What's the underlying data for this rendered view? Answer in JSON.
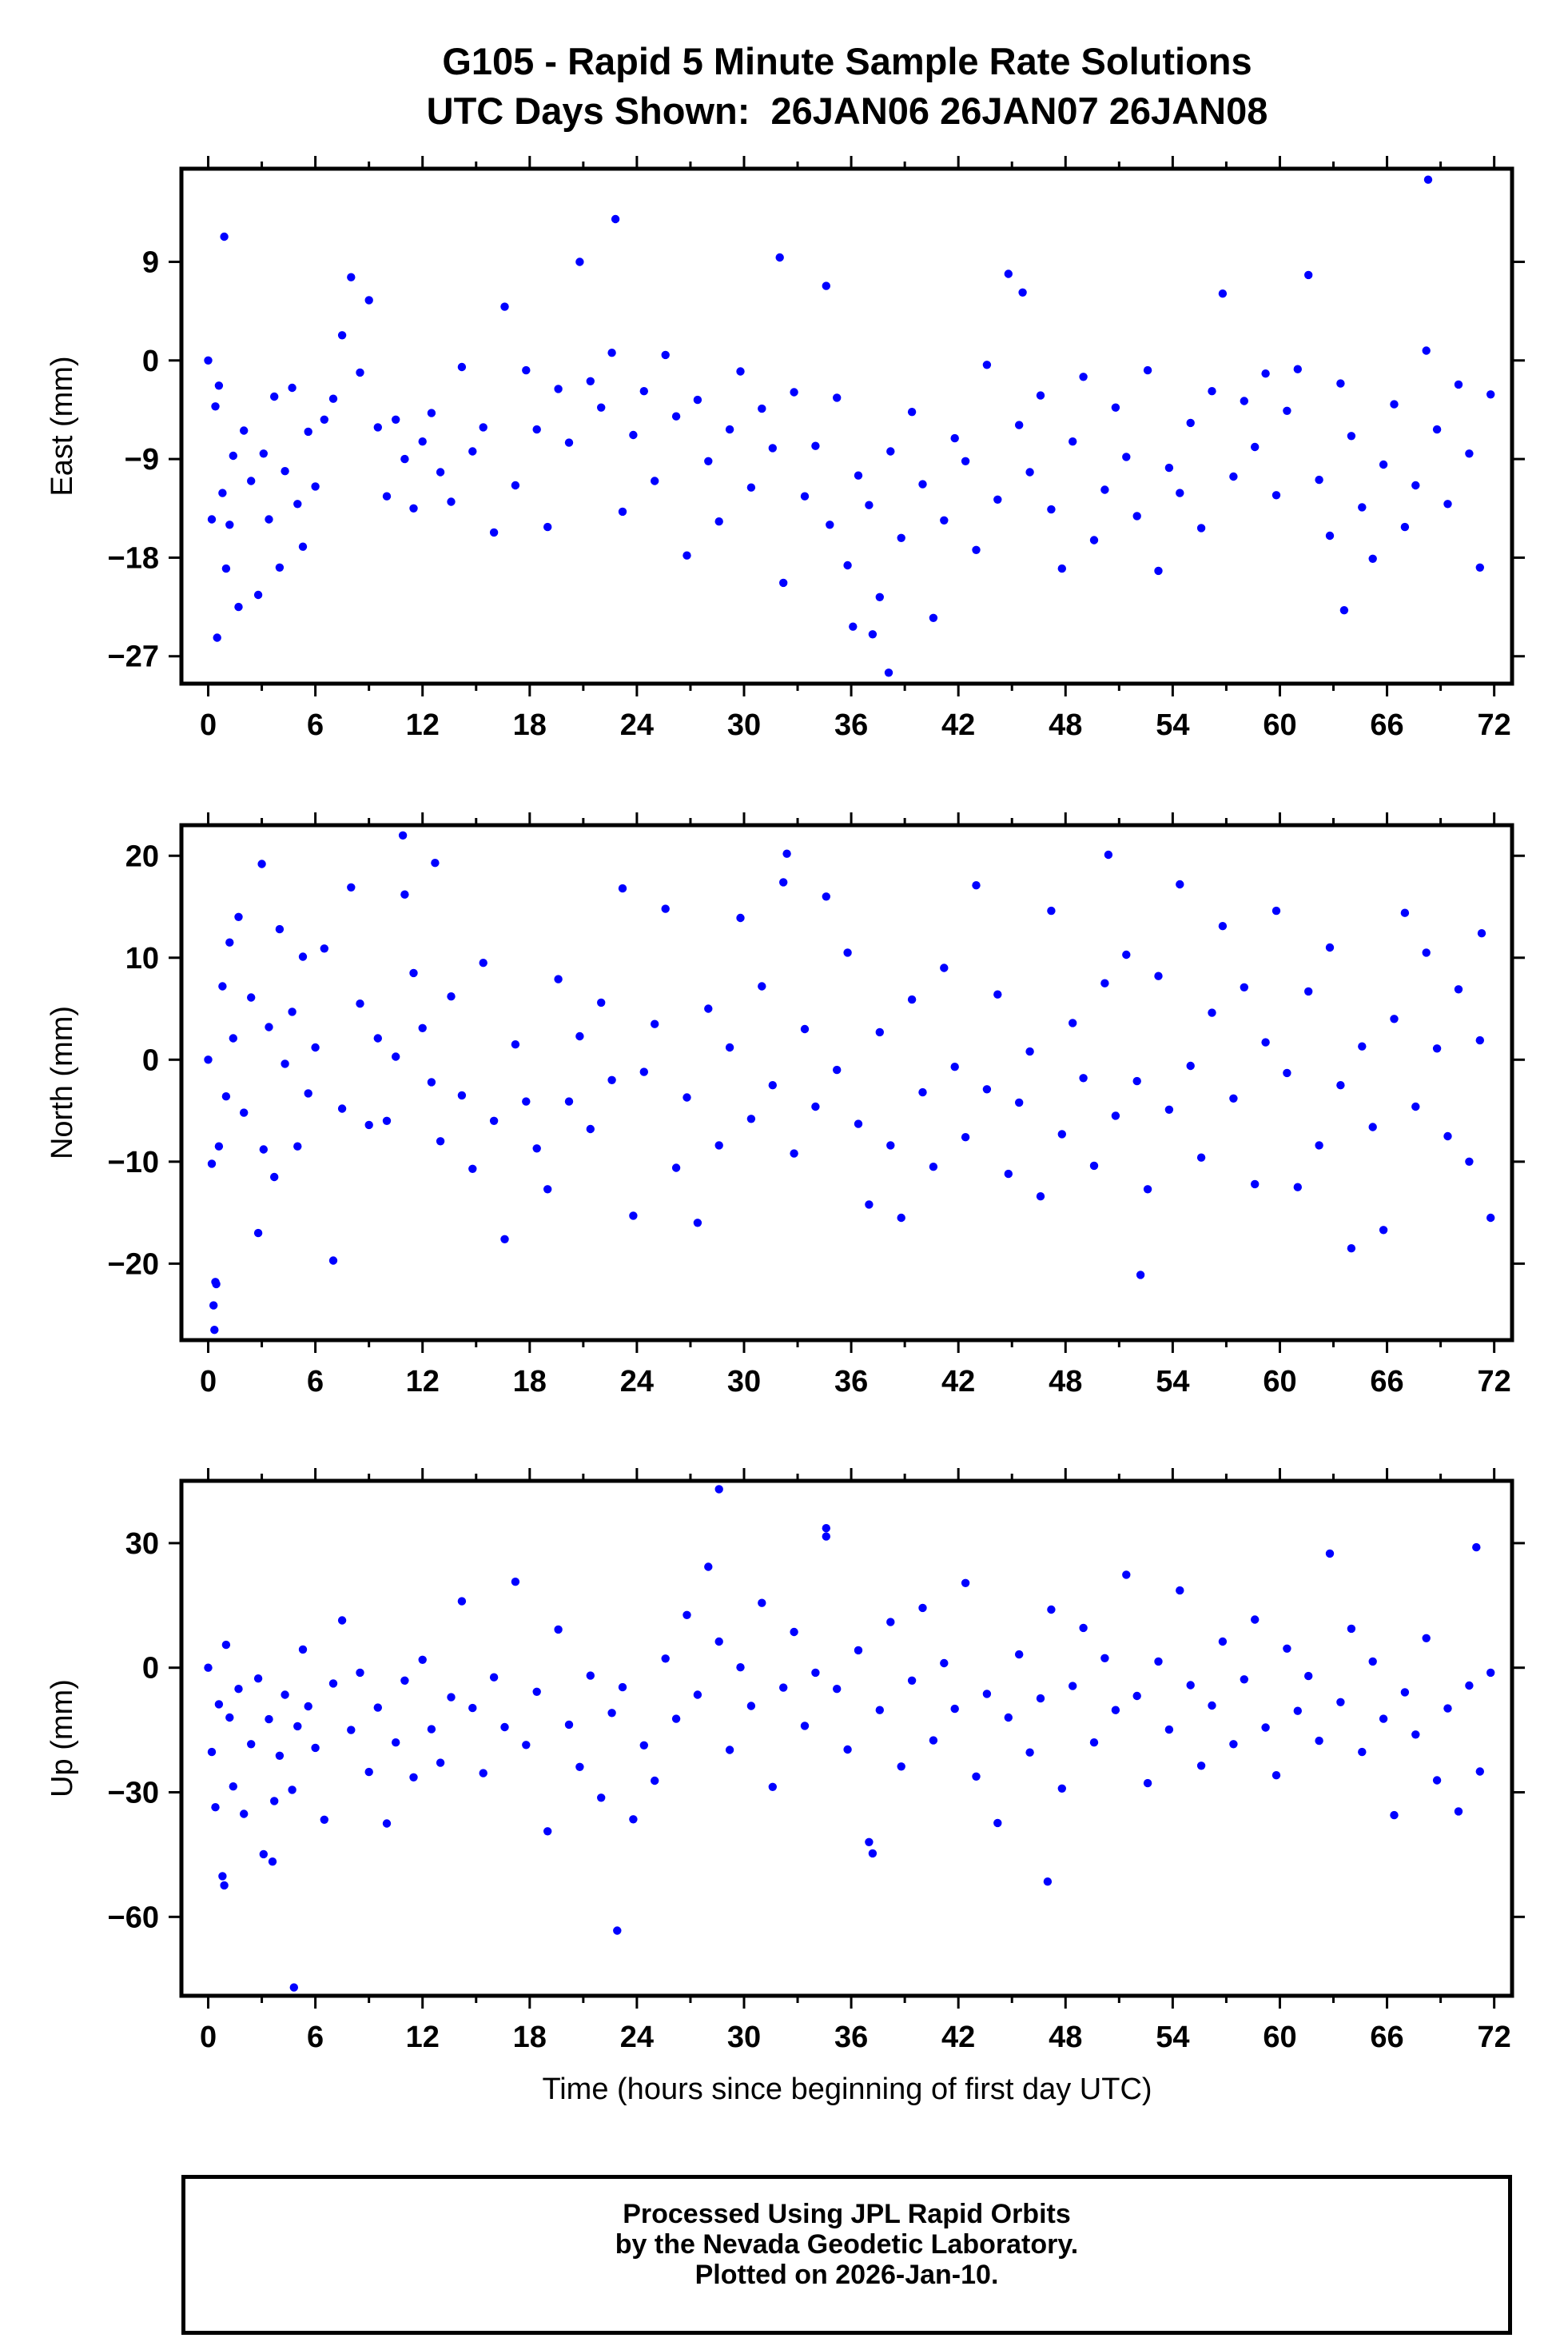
{
  "title_line1": "G105 - Rapid 5 Minute Sample Rate Solutions",
  "title_line2": "UTC Days Shown:  26JAN06 26JAN07 26JAN08",
  "marker_color": "#0000ff",
  "footer": {
    "line1": "Processed Using JPL Rapid Orbits",
    "line2": "by the Nevada Geodetic Laboratory.",
    "line3": "Plotted on 2026-Jan-10."
  },
  "chart_data": [
    {
      "type": "scatter",
      "ylabel": "East (mm)",
      "xlim": [
        -1.5,
        73
      ],
      "ylim": [
        -29.5,
        17.5
      ],
      "xticks": [
        0,
        6,
        12,
        18,
        24,
        30,
        36,
        42,
        48,
        54,
        60,
        66,
        72
      ],
      "xtick_labels": [
        "0",
        "6",
        "12",
        "18",
        "24",
        "30",
        "36",
        "42",
        "48",
        "54",
        "60",
        "66",
        "72"
      ],
      "yticks": [
        9,
        0,
        -9,
        -18,
        -27
      ],
      "ytick_labels": [
        "9",
        "0",
        "−9",
        "−18",
        "−27"
      ],
      "series": [
        {
          "x": [
            0.0,
            0.2,
            0.4,
            0.6,
            0.8,
            1.0,
            1.2,
            1.4,
            1.7,
            2.0,
            2.4,
            2.8,
            3.1,
            3.4,
            3.7,
            4.0,
            4.3,
            4.7,
            5.0,
            5.3,
            5.6,
            6.0,
            6.5,
            7.0,
            7.5,
            8.0,
            8.5,
            9.0,
            9.5,
            10.0,
            10.5,
            11.0,
            11.5,
            12.0,
            12.5,
            13.0,
            13.6,
            14.2,
            14.8,
            15.4,
            16.0,
            16.6,
            17.2,
            17.8,
            18.4,
            19.0,
            19.6,
            20.2,
            20.8,
            21.4,
            22.0,
            22.6,
            23.2,
            23.8,
            24.4,
            25.0,
            25.6,
            26.2,
            26.8,
            27.4,
            28.0,
            28.6,
            29.2,
            29.8,
            30.4,
            31.0,
            31.6,
            32.2,
            32.8,
            33.4,
            34.0,
            34.6,
            35.2,
            35.8,
            36.4,
            37.0,
            37.6,
            38.2,
            38.8,
            39.4,
            40.0,
            40.6,
            41.2,
            41.8,
            42.4,
            43.0,
            43.6,
            44.2,
            44.8,
            45.4,
            46.0,
            46.6,
            47.2,
            47.8,
            48.4,
            49.0,
            49.6,
            50.2,
            50.8,
            51.4,
            52.0,
            52.6,
            53.2,
            53.8,
            54.4,
            55.0,
            55.6,
            56.2,
            56.8,
            57.4,
            58.0,
            58.6,
            59.2,
            59.8,
            60.4,
            61.0,
            61.6,
            62.2,
            62.8,
            63.4,
            64.0,
            64.6,
            65.2,
            65.8,
            66.4,
            67.0,
            67.6,
            68.2,
            68.8,
            69.4,
            70.0,
            70.6,
            71.2,
            71.8,
            0.9,
            22.8,
            32.0,
            45.6,
            68.3,
            38.1,
            37.2,
            36.1,
            0.5,
            63.6,
            34.8
          ],
          "y": [
            0.0,
            -14.5,
            -4.2,
            -2.3,
            -12.1,
            -19.0,
            -15.0,
            -8.7,
            -22.5,
            -6.4,
            -11.0,
            -21.4,
            -8.5,
            -14.5,
            -3.3,
            -18.9,
            -10.1,
            -2.5,
            -13.1,
            -17.0,
            -6.5,
            -11.5,
            -5.4,
            -3.5,
            2.3,
            7.6,
            -1.1,
            5.5,
            -6.1,
            -12.4,
            -5.4,
            -9.0,
            -13.5,
            -7.4,
            -4.8,
            -10.2,
            -12.9,
            -0.6,
            -8.3,
            -6.1,
            -15.7,
            4.9,
            -11.4,
            -0.9,
            -6.3,
            -15.2,
            -2.6,
            -7.5,
            9.0,
            -1.9,
            -4.3,
            0.7,
            -13.8,
            -6.8,
            -2.8,
            -11.0,
            0.5,
            -5.1,
            -17.8,
            -3.6,
            -9.2,
            -14.7,
            -6.3,
            -1.0,
            -11.6,
            -4.4,
            -8.0,
            -20.3,
            -2.9,
            -12.4,
            -7.8,
            6.8,
            -3.4,
            -18.7,
            -10.5,
            -13.2,
            -21.6,
            -8.3,
            -16.2,
            -4.7,
            -11.3,
            -23.5,
            -14.6,
            -7.1,
            -9.2,
            -17.3,
            -0.4,
            -12.7,
            7.9,
            -5.9,
            -10.2,
            -3.2,
            -13.6,
            -19.0,
            -7.4,
            -1.5,
            -16.4,
            -11.8,
            -4.3,
            -8.8,
            -14.2,
            -0.9,
            -19.2,
            -9.8,
            -12.1,
            -5.7,
            -15.3,
            -2.8,
            6.1,
            -10.6,
            -3.7,
            -7.9,
            -1.2,
            -12.3,
            -4.6,
            -0.8,
            7.8,
            -10.9,
            -16.0,
            -2.1,
            -6.9,
            -13.4,
            -18.1,
            -9.5,
            -4.0,
            -15.2,
            -11.4,
            0.9,
            -6.3,
            -13.1,
            -2.2,
            -8.5,
            -18.9,
            -3.1,
            11.3,
            12.9,
            9.4,
            6.2,
            16.5,
            -28.5,
            -25.0,
            -24.3,
            -25.3,
            -22.8,
            -15.0
          ]
        }
      ]
    },
    {
      "type": "scatter",
      "ylabel": "North (mm)",
      "xlim": [
        -1.5,
        73
      ],
      "ylim": [
        -27.5,
        23
      ],
      "xticks": [
        0,
        6,
        12,
        18,
        24,
        30,
        36,
        42,
        48,
        54,
        60,
        66,
        72
      ],
      "xtick_labels": [
        "0",
        "6",
        "12",
        "18",
        "24",
        "30",
        "36",
        "42",
        "48",
        "54",
        "60",
        "66",
        "72"
      ],
      "yticks": [
        20,
        10,
        0,
        -10,
        -20
      ],
      "ytick_labels": [
        "20",
        "10",
        "0",
        "−10",
        "−20"
      ],
      "series": [
        {
          "x": [
            0.0,
            0.2,
            0.4,
            0.6,
            0.8,
            1.0,
            1.2,
            1.4,
            1.7,
            2.0,
            2.4,
            2.8,
            3.1,
            3.4,
            3.7,
            4.0,
            4.3,
            4.7,
            5.0,
            5.3,
            5.6,
            6.0,
            6.5,
            7.0,
            7.5,
            8.0,
            8.5,
            9.0,
            9.5,
            10.0,
            10.5,
            11.0,
            11.5,
            12.0,
            12.5,
            13.0,
            13.6,
            14.2,
            14.8,
            15.4,
            16.0,
            16.6,
            17.2,
            17.8,
            18.4,
            19.0,
            19.6,
            20.2,
            20.8,
            21.4,
            22.0,
            22.6,
            23.2,
            23.8,
            24.4,
            25.0,
            25.6,
            26.2,
            26.8,
            27.4,
            28.0,
            28.6,
            29.2,
            29.8,
            30.4,
            31.0,
            31.6,
            32.2,
            32.8,
            33.4,
            34.0,
            34.6,
            35.2,
            35.8,
            36.4,
            37.0,
            37.6,
            38.2,
            38.8,
            39.4,
            40.0,
            40.6,
            41.2,
            41.8,
            42.4,
            43.0,
            43.6,
            44.2,
            44.8,
            45.4,
            46.0,
            46.6,
            47.2,
            47.8,
            48.4,
            49.0,
            49.6,
            50.2,
            50.8,
            51.4,
            52.0,
            52.6,
            53.2,
            53.8,
            54.4,
            55.0,
            55.6,
            56.2,
            56.8,
            57.4,
            58.0,
            58.6,
            59.2,
            59.8,
            60.4,
            61.0,
            61.6,
            62.2,
            62.8,
            63.4,
            64.0,
            64.6,
            65.2,
            65.8,
            66.4,
            67.0,
            67.6,
            68.2,
            68.8,
            69.4,
            70.0,
            70.6,
            71.2,
            71.8,
            0.3,
            0.35,
            0.45,
            3.0,
            10.9,
            12.7,
            32.4,
            50.4,
            52.2,
            71.3
          ],
          "y": [
            0.0,
            -10.2,
            -21.8,
            -8.5,
            7.2,
            -3.6,
            11.5,
            2.1,
            14.0,
            -5.2,
            6.1,
            -17.0,
            -8.8,
            3.2,
            -11.5,
            12.8,
            -0.4,
            4.7,
            -8.5,
            10.1,
            -3.3,
            1.2,
            10.9,
            -19.7,
            -4.8,
            16.9,
            5.5,
            -6.4,
            2.1,
            -6.0,
            0.3,
            16.2,
            8.5,
            3.1,
            -2.2,
            -8.0,
            6.2,
            -3.5,
            -10.7,
            9.5,
            -6.0,
            -17.6,
            1.5,
            -4.1,
            -8.7,
            -12.7,
            7.9,
            -4.1,
            2.3,
            -6.8,
            5.6,
            -2.0,
            16.8,
            -15.3,
            -1.2,
            3.5,
            14.8,
            -10.6,
            -3.7,
            -16.0,
            5.0,
            -8.4,
            1.2,
            13.9,
            -5.8,
            7.2,
            -2.5,
            17.4,
            -9.2,
            3.0,
            -4.6,
            16.0,
            -1.0,
            10.5,
            -6.3,
            -14.2,
            2.7,
            -8.4,
            -15.5,
            5.9,
            -3.2,
            -10.5,
            9.0,
            -0.7,
            -7.6,
            17.1,
            -2.9,
            6.4,
            -11.2,
            -4.2,
            0.8,
            -13.4,
            14.6,
            -7.3,
            3.6,
            -1.8,
            -10.4,
            7.5,
            -5.5,
            10.3,
            -2.1,
            -12.7,
            8.2,
            -4.9,
            17.2,
            -0.6,
            -9.6,
            4.6,
            13.1,
            -3.8,
            7.1,
            -12.2,
            1.7,
            14.6,
            -1.3,
            -12.5,
            6.7,
            -8.4,
            11.0,
            -2.5,
            -18.5,
            1.3,
            -6.6,
            -16.7,
            4.0,
            14.4,
            -4.6,
            10.5,
            1.1,
            -7.5,
            6.9,
            -10.0,
            1.9,
            -15.5,
            -24.1,
            -26.5,
            -22.0,
            19.2,
            22.0,
            19.3,
            20.2,
            20.1,
            -21.1,
            12.4
          ]
        }
      ]
    },
    {
      "type": "scatter",
      "ylabel": "Up (mm)",
      "xlim": [
        -1.5,
        73
      ],
      "ylim": [
        -79,
        45
      ],
      "xlabel": "Time (hours since beginning of first day UTC)",
      "xticks": [
        0,
        6,
        12,
        18,
        24,
        30,
        36,
        42,
        48,
        54,
        60,
        66,
        72
      ],
      "xtick_labels": [
        "0",
        "6",
        "12",
        "18",
        "24",
        "30",
        "36",
        "42",
        "48",
        "54",
        "60",
        "66",
        "72"
      ],
      "yticks": [
        30,
        0,
        -30,
        -60
      ],
      "ytick_labels": [
        "30",
        "0",
        "−30",
        "−60"
      ],
      "series": [
        {
          "x": [
            0.0,
            0.2,
            0.4,
            0.6,
            0.8,
            1.0,
            1.2,
            1.4,
            1.7,
            2.0,
            2.4,
            2.8,
            3.1,
            3.4,
            3.7,
            4.0,
            4.3,
            4.7,
            5.0,
            5.3,
            5.6,
            6.0,
            6.5,
            7.0,
            7.5,
            8.0,
            8.5,
            9.0,
            9.5,
            10.0,
            10.5,
            11.0,
            11.5,
            12.0,
            12.5,
            13.0,
            13.6,
            14.2,
            14.8,
            15.4,
            16.0,
            16.6,
            17.2,
            17.8,
            18.4,
            19.0,
            19.6,
            20.2,
            20.8,
            21.4,
            22.0,
            22.6,
            23.2,
            23.8,
            24.4,
            25.0,
            25.6,
            26.2,
            26.8,
            27.4,
            28.0,
            28.6,
            29.2,
            29.8,
            30.4,
            31.0,
            31.6,
            32.2,
            32.8,
            33.4,
            34.0,
            34.6,
            35.2,
            35.8,
            36.4,
            37.0,
            37.6,
            38.2,
            38.8,
            39.4,
            40.0,
            40.6,
            41.2,
            41.8,
            42.4,
            43.0,
            43.6,
            44.2,
            44.8,
            45.4,
            46.0,
            46.6,
            47.2,
            47.8,
            48.4,
            49.0,
            49.6,
            50.2,
            50.8,
            51.4,
            52.0,
            52.6,
            53.2,
            53.8,
            54.4,
            55.0,
            55.6,
            56.2,
            56.8,
            57.4,
            58.0,
            58.6,
            59.2,
            59.8,
            60.4,
            61.0,
            61.6,
            62.2,
            62.8,
            63.4,
            64.0,
            64.6,
            65.2,
            65.8,
            66.4,
            67.0,
            67.6,
            68.2,
            68.8,
            69.4,
            70.0,
            70.6,
            71.2,
            71.8,
            4.8,
            22.9,
            28.6,
            0.9,
            3.6,
            34.6,
            37.2,
            47.0,
            71.0
          ],
          "y": [
            0.0,
            -20.3,
            -33.6,
            -8.8,
            -50.2,
            5.5,
            -12.0,
            -28.6,
            -5.1,
            -35.2,
            -18.4,
            -2.6,
            -44.9,
            -12.4,
            -32.1,
            -21.2,
            -6.5,
            -29.4,
            -14.1,
            4.4,
            -9.3,
            -19.3,
            -36.6,
            -3.8,
            11.4,
            -15.0,
            -1.2,
            -25.1,
            -9.6,
            -37.5,
            -18.0,
            -3.1,
            -26.4,
            1.9,
            -14.8,
            -22.9,
            -7.1,
            16.0,
            -9.7,
            -25.4,
            -2.3,
            -14.3,
            20.7,
            -18.6,
            -5.8,
            -39.4,
            9.2,
            -13.7,
            -23.9,
            -1.9,
            -31.3,
            -10.9,
            -4.7,
            -36.5,
            -18.7,
            -27.2,
            2.2,
            -12.3,
            12.7,
            -6.5,
            24.3,
            6.3,
            -19.8,
            0.1,
            -9.2,
            15.6,
            -28.7,
            -4.8,
            8.6,
            -14.0,
            -1.2,
            31.6,
            -5.1,
            -19.7,
            4.2,
            -42.0,
            -10.2,
            11.0,
            -23.8,
            -3.1,
            14.4,
            -17.5,
            1.1,
            -9.9,
            20.4,
            -26.2,
            -6.3,
            -37.4,
            -12.0,
            3.2,
            -20.4,
            -7.4,
            14.0,
            -29.1,
            -4.4,
            9.6,
            -18.0,
            2.3,
            -10.2,
            22.4,
            -6.8,
            -27.8,
            1.5,
            -14.9,
            18.6,
            -4.2,
            -23.6,
            -9.1,
            6.3,
            -18.4,
            -2.8,
            11.6,
            -14.4,
            -25.9,
            4.6,
            -10.4,
            -2.0,
            -17.6,
            27.5,
            -8.3,
            9.4,
            -20.3,
            1.5,
            -12.3,
            -35.5,
            -5.9,
            -16.1,
            7.1,
            -27.1,
            -9.8,
            -34.6,
            -4.3,
            -25.0,
            -1.2,
            -77.0,
            -63.3,
            43.0,
            -52.4,
            -46.7,
            33.6,
            -44.7,
            -51.5,
            29.0
          ]
        }
      ]
    }
  ]
}
